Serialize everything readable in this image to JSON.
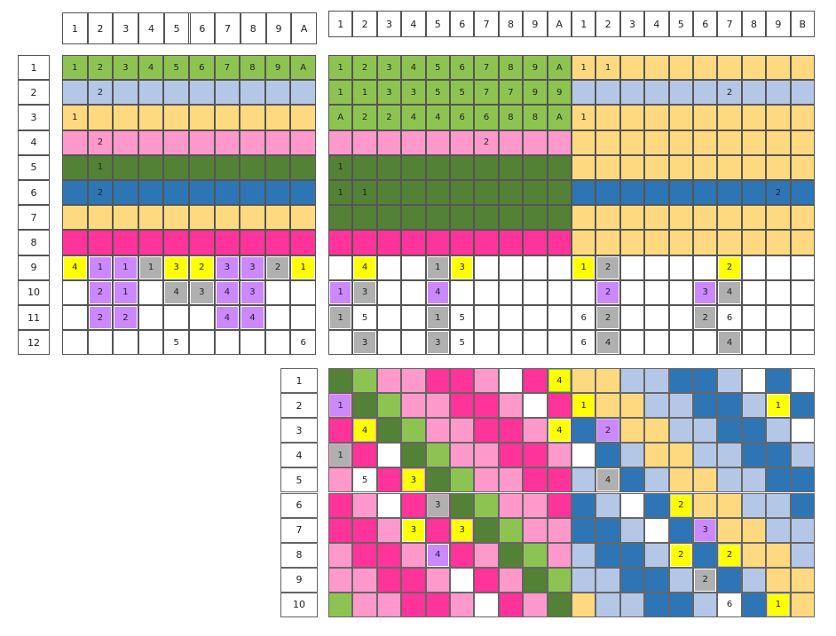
{
  "colors": {
    "G": "#8dc451",
    "D": "#538135",
    "L": "#b4c7e7",
    "Y": "#ffd97f",
    "P": "#ff99cc",
    "M": "#ff3399",
    "B": "#2e75b6",
    "W": "#ffffff",
    "gray": "#b0b0b0",
    "yellow": "#ffff00",
    "purple": "#cc88ff"
  },
  "badge_codes": {
    "y": "yellow",
    "g": "gray",
    "p": "purple"
  },
  "left": {
    "col_headers": [
      "1",
      "2",
      "3",
      "4",
      "5",
      "6",
      "7",
      "8",
      "9",
      "A"
    ],
    "row_headers": [
      "1",
      "2",
      "3",
      "4",
      "5",
      "6",
      "7",
      "8",
      "9",
      "10",
      "11",
      "12"
    ],
    "rows": [
      [
        "G",
        "G",
        "G",
        "G",
        "G",
        "G",
        "G",
        "G",
        "G",
        "G"
      ],
      [
        "L",
        "L",
        "L",
        "L",
        "L",
        "L",
        "L",
        "L",
        "L",
        "L"
      ],
      [
        "Y",
        "Y",
        "Y",
        "Y",
        "Y",
        "Y",
        "Y",
        "Y",
        "Y",
        "Y"
      ],
      [
        "P",
        "P",
        "P",
        "P",
        "P",
        "P",
        "P",
        "P",
        "P",
        "P"
      ],
      [
        "D",
        "D",
        "D",
        "D",
        "D",
        "D",
        "D",
        "D",
        "D",
        "D"
      ],
      [
        "B",
        "B",
        "B",
        "B",
        "B",
        "B",
        "B",
        "B",
        "B",
        "B"
      ],
      [
        "Y",
        "Y",
        "Y",
        "Y",
        "Y",
        "Y",
        "Y",
        "Y",
        "Y",
        "Y"
      ],
      [
        "M",
        "M",
        "M",
        "M",
        "M",
        "M",
        "M",
        "M",
        "M",
        "M"
      ],
      [
        "W",
        "W",
        "W",
        "W",
        "W",
        "W",
        "W",
        "W",
        "W",
        "W"
      ],
      [
        "W",
        "W",
        "W",
        "W",
        "W",
        "W",
        "W",
        "W",
        "W",
        "W"
      ],
      [
        "W",
        "W",
        "W",
        "W",
        "W",
        "W",
        "W",
        "W",
        "W",
        "W"
      ],
      [
        "W",
        "W",
        "W",
        "W",
        "W",
        "W",
        "W",
        "W",
        "W",
        "W"
      ]
    ],
    "marks": [
      [
        "1",
        "2",
        "3",
        "4",
        "5",
        "6",
        "7",
        "8",
        "9",
        "A"
      ],
      [
        "",
        "2",
        "",
        "",
        "",
        "",
        "",
        "",
        "",
        ""
      ],
      [
        "1",
        "",
        "",
        "",
        "",
        "",
        "",
        "",
        "",
        ""
      ],
      [
        "",
        "2",
        "",
        "",
        "",
        "",
        "",
        "",
        "",
        ""
      ],
      [
        "",
        "1",
        "",
        "",
        "",
        "",
        "",
        "",
        "",
        ""
      ],
      [
        "",
        "2",
        "",
        "",
        "",
        "",
        "",
        "",
        "",
        ""
      ],
      [
        "",
        "",
        "",
        "",
        "",
        "",
        "",
        "",
        "",
        ""
      ],
      [
        "",
        "",
        "",
        "",
        "",
        "",
        "",
        "",
        "",
        ""
      ],
      [
        "y4",
        "p1",
        "p1",
        "g1",
        "y3",
        "y2",
        "p3",
        "p3",
        "g2",
        "y1"
      ],
      [
        "",
        "p2",
        "p1",
        "",
        "g4",
        "g3",
        "p4",
        "p3",
        "",
        ""
      ],
      [
        "",
        "p2",
        "p2",
        "",
        "",
        "",
        "p4",
        "p4",
        "",
        ""
      ],
      [
        "",
        "",
        "",
        "",
        "5",
        "",
        "",
        "",
        "",
        "6"
      ]
    ]
  },
  "right": {
    "col_headers": [
      "1",
      "2",
      "3",
      "4",
      "5",
      "6",
      "7",
      "8",
      "9",
      "A",
      "1",
      "2",
      "3",
      "4",
      "5",
      "6",
      "7",
      "8",
      "9",
      "B"
    ],
    "rows": [
      [
        "G",
        "G",
        "G",
        "G",
        "G",
        "G",
        "G",
        "G",
        "G",
        "G",
        "Y",
        "Y",
        "Y",
        "Y",
        "Y",
        "Y",
        "Y",
        "Y",
        "Y",
        "Y"
      ],
      [
        "G",
        "G",
        "G",
        "G",
        "G",
        "G",
        "G",
        "G",
        "G",
        "G",
        "L",
        "L",
        "L",
        "L",
        "L",
        "L",
        "L",
        "L",
        "L",
        "L"
      ],
      [
        "G",
        "G",
        "G",
        "G",
        "G",
        "G",
        "G",
        "G",
        "G",
        "G",
        "Y",
        "Y",
        "Y",
        "Y",
        "Y",
        "Y",
        "Y",
        "Y",
        "Y",
        "Y"
      ],
      [
        "P",
        "P",
        "P",
        "P",
        "P",
        "P",
        "P",
        "P",
        "P",
        "P",
        "Y",
        "Y",
        "Y",
        "Y",
        "Y",
        "Y",
        "Y",
        "Y",
        "Y",
        "Y"
      ],
      [
        "D",
        "D",
        "D",
        "D",
        "D",
        "D",
        "D",
        "D",
        "D",
        "D",
        "Y",
        "Y",
        "Y",
        "Y",
        "Y",
        "Y",
        "Y",
        "Y",
        "Y",
        "Y"
      ],
      [
        "D",
        "D",
        "D",
        "D",
        "D",
        "D",
        "D",
        "D",
        "D",
        "D",
        "B",
        "B",
        "B",
        "B",
        "B",
        "B",
        "B",
        "B",
        "B",
        "B"
      ],
      [
        "D",
        "D",
        "D",
        "D",
        "D",
        "D",
        "D",
        "D",
        "D",
        "D",
        "Y",
        "Y",
        "Y",
        "Y",
        "Y",
        "Y",
        "Y",
        "Y",
        "Y",
        "Y"
      ],
      [
        "M",
        "M",
        "M",
        "M",
        "M",
        "M",
        "M",
        "M",
        "M",
        "M",
        "Y",
        "Y",
        "Y",
        "Y",
        "Y",
        "Y",
        "Y",
        "Y",
        "Y",
        "Y"
      ],
      [
        "W",
        "W",
        "W",
        "W",
        "W",
        "W",
        "W",
        "W",
        "W",
        "W",
        "W",
        "W",
        "W",
        "W",
        "W",
        "W",
        "W",
        "W",
        "W",
        "W"
      ],
      [
        "W",
        "W",
        "W",
        "W",
        "W",
        "W",
        "W",
        "W",
        "W",
        "W",
        "W",
        "W",
        "W",
        "W",
        "W",
        "W",
        "W",
        "W",
        "W",
        "W"
      ],
      [
        "W",
        "W",
        "W",
        "W",
        "W",
        "W",
        "W",
        "W",
        "W",
        "W",
        "W",
        "W",
        "W",
        "W",
        "W",
        "W",
        "W",
        "W",
        "W",
        "W"
      ],
      [
        "W",
        "W",
        "W",
        "W",
        "W",
        "W",
        "W",
        "W",
        "W",
        "W",
        "W",
        "W",
        "W",
        "W",
        "W",
        "W",
        "W",
        "W",
        "W",
        "W"
      ]
    ],
    "marks": [
      [
        "1",
        "2",
        "3",
        "4",
        "5",
        "6",
        "7",
        "8",
        "9",
        "A",
        "1",
        "1",
        "",
        "",
        "",
        "",
        "",
        "",
        "",
        ""
      ],
      [
        "1",
        "1",
        "3",
        "3",
        "5",
        "5",
        "7",
        "7",
        "9",
        "9",
        "",
        "",
        "",
        "",
        "",
        "",
        "2",
        "",
        "",
        ""
      ],
      [
        "A",
        "2",
        "2",
        "4",
        "4",
        "6",
        "6",
        "8",
        "8",
        "A",
        "1",
        "",
        "",
        "",
        "",
        "",
        "",
        "",
        "",
        ""
      ],
      [
        "",
        "",
        "",
        "",
        "",
        "",
        "2",
        "",
        "",
        "",
        "",
        "",
        "",
        "",
        "",
        "",
        "",
        "",
        "",
        ""
      ],
      [
        "1",
        "",
        "",
        "",
        "",
        "",
        "",
        "",
        "",
        "",
        "",
        "",
        "",
        "",
        "",
        "",
        "",
        "",
        "",
        ""
      ],
      [
        "1",
        "1",
        "",
        "",
        "",
        "",
        "",
        "",
        "",
        "",
        "",
        "",
        "",
        "",
        "",
        "",
        "",
        "",
        "2",
        ""
      ],
      [
        "",
        "",
        "",
        "",
        "",
        "",
        "",
        "",
        "",
        "",
        "",
        "",
        "",
        "",
        "",
        "",
        "",
        "",
        "",
        ""
      ],
      [
        "",
        "",
        "",
        "",
        "",
        "",
        "",
        "",
        "",
        "",
        "",
        "",
        "",
        "",
        "",
        "",
        "",
        "",
        "",
        ""
      ],
      [
        "",
        "y4",
        "",
        "",
        "g1",
        "y3",
        "",
        "",
        "",
        "",
        "y1",
        "g2",
        "",
        "",
        "",
        "",
        "y2",
        "",
        "",
        ""
      ],
      [
        "p1",
        "g3",
        "",
        "",
        "p4",
        "",
        "",
        "",
        "",
        "",
        "",
        "p2",
        "",
        "",
        "",
        "p3",
        "g4",
        "",
        "",
        ""
      ],
      [
        "g1",
        "5",
        "",
        "",
        "g1",
        "5",
        "",
        "",
        "",
        "",
        "6",
        "g2",
        "",
        "",
        "",
        "g2",
        "6",
        "",
        "",
        ""
      ],
      [
        "",
        "g3",
        "",
        "",
        "g3",
        "5",
        "",
        "",
        "",
        "",
        "6",
        "g4",
        "",
        "",
        "",
        "",
        "g4",
        "",
        "",
        ""
      ]
    ]
  },
  "bottom": {
    "row_headers": [
      "1",
      "2",
      "3",
      "4",
      "5",
      "6",
      "7",
      "8",
      "9",
      "10"
    ],
    "rows": [
      [
        "D",
        "G",
        "P",
        "P",
        "M",
        "M",
        "P",
        "W",
        "M",
        "G",
        "Y",
        "Y",
        "L",
        "L",
        "B",
        "B",
        "L",
        "W",
        "B",
        "W"
      ],
      [
        "P",
        "D",
        "G",
        "P",
        "P",
        "M",
        "M",
        "P",
        "W",
        "M",
        "Y",
        "Y",
        "Y",
        "L",
        "L",
        "B",
        "B",
        "L",
        "W",
        "B"
      ],
      [
        "M",
        "P",
        "D",
        "G",
        "P",
        "P",
        "M",
        "M",
        "P",
        "W",
        "B",
        "L",
        "Y",
        "Y",
        "L",
        "L",
        "B",
        "B",
        "L",
        "W"
      ],
      [
        "P",
        "M",
        "W",
        "D",
        "G",
        "P",
        "P",
        "M",
        "M",
        "P",
        "W",
        "B",
        "L",
        "Y",
        "Y",
        "L",
        "L",
        "B",
        "B",
        "L"
      ],
      [
        "P",
        "W",
        "M",
        "P",
        "D",
        "G",
        "P",
        "P",
        "M",
        "M",
        "L",
        "W",
        "B",
        "L",
        "Y",
        "Y",
        "L",
        "L",
        "B",
        "B"
      ],
      [
        "M",
        "P",
        "W",
        "M",
        "P",
        "D",
        "G",
        "P",
        "P",
        "M",
        "B",
        "L",
        "W",
        "B",
        "L",
        "Y",
        "Y",
        "L",
        "L",
        "B"
      ],
      [
        "M",
        "M",
        "P",
        "W",
        "M",
        "P",
        "D",
        "G",
        "P",
        "P",
        "B",
        "B",
        "L",
        "W",
        "B",
        "L",
        "Y",
        "Y",
        "L",
        "L"
      ],
      [
        "P",
        "M",
        "M",
        "P",
        "W",
        "M",
        "P",
        "D",
        "G",
        "P",
        "L",
        "B",
        "B",
        "L",
        "W",
        "B",
        "L",
        "Y",
        "Y",
        "L"
      ],
      [
        "P",
        "P",
        "M",
        "M",
        "P",
        "W",
        "M",
        "P",
        "D",
        "G",
        "L",
        "L",
        "B",
        "B",
        "L",
        "W",
        "B",
        "L",
        "Y",
        "Y"
      ],
      [
        "G",
        "P",
        "P",
        "M",
        "M",
        "P",
        "W",
        "M",
        "P",
        "D",
        "Y",
        "L",
        "L",
        "B",
        "B",
        "L",
        "W",
        "B",
        "L",
        "Y"
      ]
    ],
    "marks": [
      [
        "",
        "",
        "",
        "",
        "",
        "",
        "",
        "",
        "",
        "y4",
        "",
        "",
        "",
        "",
        "",
        "",
        "",
        "",
        "",
        ""
      ],
      [
        "p1",
        "",
        "",
        "",
        "",
        "",
        "",
        "",
        "",
        "",
        "y1",
        "",
        "",
        "",
        "",
        "",
        "",
        "",
        "y1",
        ""
      ],
      [
        "",
        "y4",
        "",
        "",
        "",
        "",
        "",
        "",
        "",
        "y4",
        "",
        "p2",
        "",
        "",
        "",
        "",
        "",
        "",
        "",
        ""
      ],
      [
        "g1",
        "",
        "",
        "",
        "",
        "",
        "",
        "",
        "",
        "",
        "",
        "",
        "",
        "",
        "",
        "",
        "",
        "",
        "",
        ""
      ],
      [
        "",
        "5",
        "",
        "y3",
        "",
        "",
        "",
        "",
        "",
        "",
        "",
        "g4",
        "",
        "",
        "",
        "",
        "",
        "",
        "",
        ""
      ],
      [
        "",
        "",
        "",
        "",
        "g3",
        "",
        "",
        "",
        "",
        "",
        "",
        "",
        "",
        "",
        "y2",
        "",
        "",
        "",
        "",
        ""
      ],
      [
        "",
        "",
        "",
        "y3",
        "",
        "y3",
        "",
        "",
        "",
        "",
        "",
        "",
        "",
        "",
        "",
        "p3",
        "",
        "",
        "",
        ""
      ],
      [
        "",
        "",
        "",
        "",
        "p4",
        "",
        "",
        "",
        "",
        "",
        "",
        "",
        "",
        "",
        "y2",
        "",
        "y2",
        "",
        "",
        ""
      ],
      [
        "",
        "",
        "",
        "",
        "",
        "",
        "",
        "",
        "",
        "",
        "",
        "",
        "",
        "",
        "",
        "g2",
        "",
        "",
        "",
        ""
      ],
      [
        "",
        "",
        "",
        "",
        "",
        "",
        "",
        "",
        "",
        "",
        "",
        "",
        "",
        "",
        "",
        "",
        "6",
        "",
        "y1",
        ""
      ]
    ]
  }
}
